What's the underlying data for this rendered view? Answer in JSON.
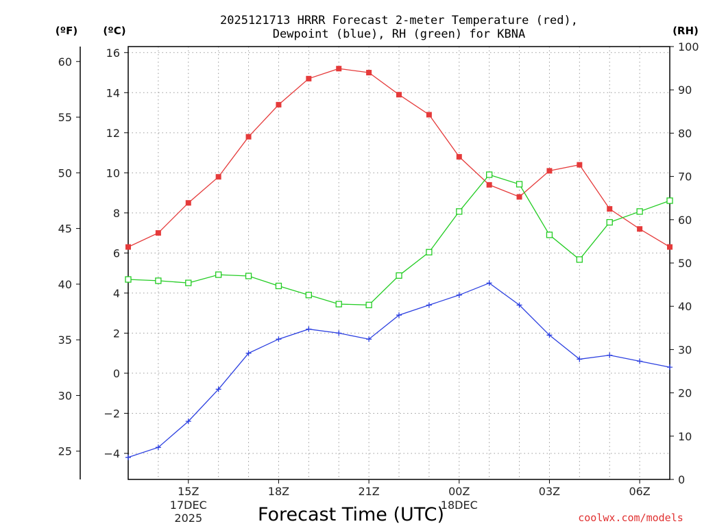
{
  "title_line1": "2025121713 HRRR Forecast 2-meter Temperature (red),",
  "title_line2": "Dewpoint (blue), RH (green) for KBNA",
  "unit_f": "(ºF)",
  "unit_c": "(ºC)",
  "unit_rh": "(RH)",
  "credit": "coolwx.com/models",
  "colors": {
    "temp": "#e53a3a",
    "dewpoint": "#2b3fe0",
    "rh": "#22cc22",
    "axis": "#000000"
  },
  "chart_data": {
    "type": "line",
    "title": "2025121713 HRRR Forecast 2-meter Temperature (red), Dewpoint (blue), RH (green) for KBNA",
    "xlabel": "Forecast Time (UTC)",
    "x_hours_utc": [
      13,
      14,
      15,
      16,
      17,
      18,
      19,
      20,
      21,
      22,
      23,
      24,
      25,
      26,
      27,
      28,
      29,
      30,
      31
    ],
    "x_ticks": [
      {
        "hour": 15,
        "label": "15Z",
        "sub1": "17DEC",
        "sub2": "2025"
      },
      {
        "hour": 18,
        "label": "18Z",
        "sub1": "",
        "sub2": ""
      },
      {
        "hour": 21,
        "label": "21Z",
        "sub1": "",
        "sub2": ""
      },
      {
        "hour": 24,
        "label": "00Z",
        "sub1": "18DEC",
        "sub2": ""
      },
      {
        "hour": 27,
        "label": "03Z",
        "sub1": "",
        "sub2": ""
      },
      {
        "hour": 30,
        "label": "06Z",
        "sub1": "",
        "sub2": ""
      }
    ],
    "left_axis_c": {
      "label": "(ºC)",
      "range": [
        -5.3,
        16.3
      ],
      "ticks": [
        "−4",
        "−2",
        "0",
        "2",
        "4",
        "6",
        "8",
        "10",
        "12",
        "14",
        "16"
      ]
    },
    "far_left_axis_f": {
      "label": "(ºF)",
      "range": [
        22.46,
        61.34
      ],
      "ticks": [
        "25",
        "30",
        "35",
        "40",
        "45",
        "50",
        "55",
        "60"
      ]
    },
    "right_axis_rh": {
      "label": "(RH)",
      "range": [
        0,
        100
      ],
      "ticks": [
        "0",
        "10",
        "20",
        "30",
        "40",
        "50",
        "60",
        "70",
        "80",
        "90",
        "100"
      ]
    },
    "series": [
      {
        "name": "2-meter Temperature",
        "axis": "c",
        "color": "#e53a3a",
        "marker": "filled-square",
        "values": [
          6.3,
          7.0,
          8.5,
          9.8,
          11.8,
          13.4,
          14.7,
          15.2,
          15.0,
          13.9,
          12.9,
          10.8,
          9.4,
          8.8,
          10.1,
          10.4,
          8.2,
          7.2,
          6.3
        ]
      },
      {
        "name": "Dewpoint",
        "axis": "c",
        "color": "#2b3fe0",
        "marker": "plus",
        "values": [
          -4.2,
          -3.7,
          -2.4,
          -0.8,
          1.0,
          1.7,
          2.2,
          2.0,
          1.7,
          2.9,
          3.4,
          3.9,
          4.5,
          3.4,
          1.9,
          0.7,
          0.9,
          0.6,
          0.3
        ]
      },
      {
        "name": "Relative Humidity",
        "axis": "rh",
        "color": "#22cc22",
        "marker": "open-square",
        "values": [
          46.2,
          45.9,
          45.4,
          47.3,
          47.0,
          44.7,
          42.6,
          40.5,
          40.3,
          47.1,
          52.5,
          61.9,
          70.4,
          68.2,
          56.5,
          50.8,
          59.4,
          61.9,
          64.4
        ]
      }
    ]
  }
}
